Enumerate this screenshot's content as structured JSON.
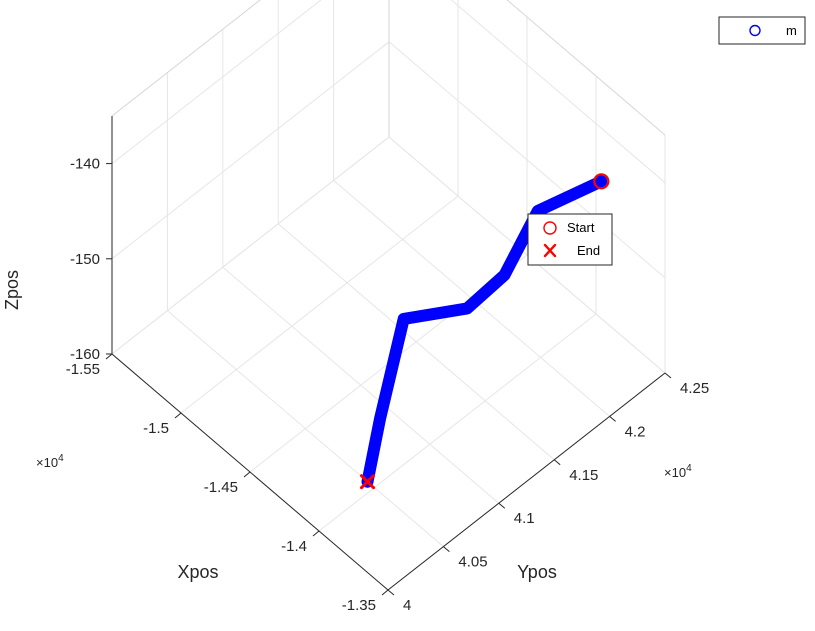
{
  "chart_data": {
    "type": "line",
    "projection": "3d",
    "xlabel": "Xpos",
    "ylabel": "Ypos",
    "zlabel": "Zpos",
    "x_exponent_label": "×10",
    "x_exponent_power": "4",
    "y_exponent_label": "×10",
    "y_exponent_power": "4",
    "xlim": [
      -15500,
      -13500
    ],
    "ylim": [
      40000,
      42500
    ],
    "zlim": [
      -160,
      -135
    ],
    "x_ticks": [
      "-1.55",
      "-1.5",
      "-1.45",
      "-1.4",
      "-1.35"
    ],
    "y_ticks": [
      "4",
      "4.05",
      "4.1",
      "4.15",
      "4.2",
      "4.25"
    ],
    "z_ticks": [
      "-140",
      "-150",
      "-160"
    ],
    "grid": true,
    "series": [
      {
        "name": "m",
        "color": "#0000ff",
        "points": [
          {
            "x": -13600,
            "y": 42050,
            "z": -137
          },
          {
            "x": -13900,
            "y": 41850,
            "z": -142
          },
          {
            "x": -13900,
            "y": 41550,
            "z": -146
          },
          {
            "x": -14050,
            "y": 41400,
            "z": -150
          },
          {
            "x": -14350,
            "y": 41200,
            "z": -153
          },
          {
            "x": -14200,
            "y": 40800,
            "z": -158
          },
          {
            "x": -14050,
            "y": 40500,
            "z": -160
          }
        ]
      }
    ],
    "markers": [
      {
        "label": "Start",
        "symbol": "o",
        "color": "#ff0000",
        "x": -13600,
        "y": 42050,
        "z": -137
      },
      {
        "label": "End",
        "symbol": "x",
        "color": "#ff0000",
        "x": -14050,
        "y": 40500,
        "z": -160
      }
    ],
    "legend_main": {
      "entries": [
        "m"
      ],
      "placement": "top-right"
    },
    "legend_secondary": {
      "entries": [
        "Start",
        "End"
      ],
      "placement": "right"
    }
  }
}
